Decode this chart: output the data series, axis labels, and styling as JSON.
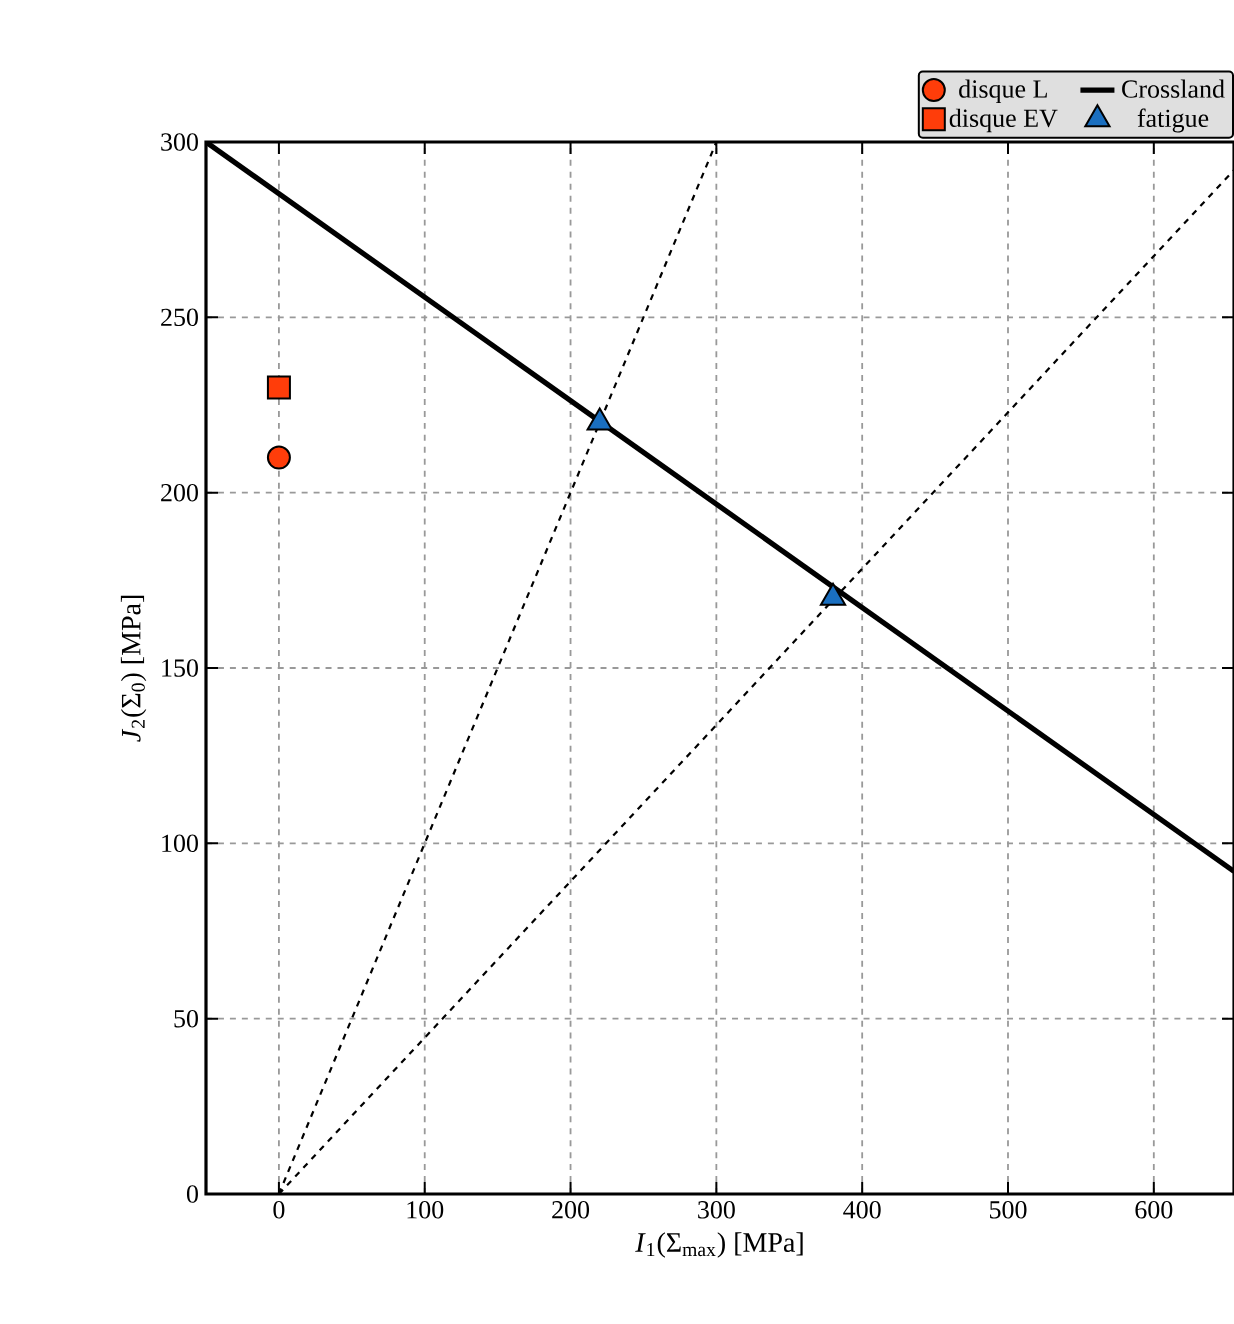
{
  "chart_data": {
    "type": "scatter",
    "xlabel": "*I*$_{1}$(Σ$_{max}$) [MPa]",
    "ylabel": "*J*$_{2}$(Σ$_{0}$) [MPa]",
    "xlim": [
      -50,
      655
    ],
    "ylim": [
      0,
      300
    ],
    "xticks": [
      0,
      100,
      200,
      300,
      400,
      500,
      600
    ],
    "yticks": [
      0,
      50,
      100,
      150,
      200,
      250,
      300
    ],
    "grid": true,
    "legend": "top right",
    "series": [
      {
        "type": "line",
        "line_style": "dashed",
        "marker": "none",
        "color": "#000000",
        "x": [
          0,
          300
        ],
        "values": [
          0,
          300
        ]
      },
      {
        "type": "line",
        "line_style": "dashed",
        "marker": "none",
        "color": "#000000",
        "x": [
          0,
          655
        ],
        "values": [
          0,
          292
        ]
      },
      {
        "name": "disque L",
        "marker": "circle",
        "color": "#ff3d0a",
        "x": [
          0
        ],
        "values": [
          210
        ]
      },
      {
        "name": "Crossland",
        "type": "line",
        "line_style": "solid",
        "marker": "none",
        "color": "#000000",
        "x": [
          -50,
          655
        ],
        "values": [
          300,
          92
        ]
      },
      {
        "name": "disque EV",
        "marker": "square",
        "color": "#ff3d0a",
        "x": [
          0
        ],
        "values": [
          230
        ]
      },
      {
        "name": "fatigue",
        "marker": "triangle",
        "color": "#1a6fc0",
        "x": [
          220,
          380
        ],
        "values": [
          220,
          170
        ]
      }
    ]
  }
}
